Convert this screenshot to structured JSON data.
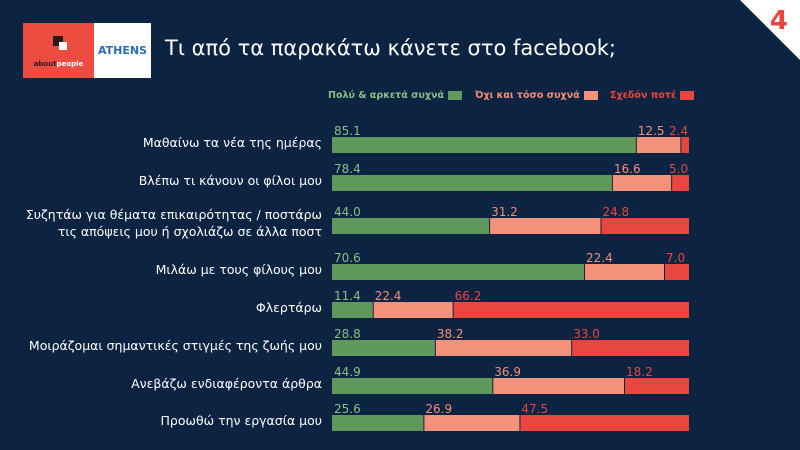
{
  "header": {
    "title": "Τι από τα παρακάτω κάνετε στο facebook;",
    "page_number": "4",
    "logo": {
      "left_text_dark": "about",
      "left_text_light": "people",
      "right_text": "ATHENS"
    }
  },
  "colors": {
    "background": "#0c2341",
    "green": "#5f9a5c",
    "salmon": "#f4917a",
    "red": "#e8463e"
  },
  "chart_data": {
    "type": "bar",
    "orientation": "horizontal",
    "stacked": true,
    "xlim": [
      0,
      100
    ],
    "legend_position": "top-right",
    "categories": [
      "Μαθαίνω τα νέα της ημέρας",
      "Βλέπω τι κάνουν οι φίλοι μου",
      "Συζητάω για θέματα επικαιρότητας / ποστάρω τις απόψεις μου ή σχολιάζω σε άλλα ποστ",
      "Μιλάω με τους φίλους μου",
      "Φλερτάρω",
      "Μοιράζομαι σημαντικές στιγμές της ζωής μου",
      "Ανεβάζω ενδιαφέροντα άρθρα",
      "Προωθώ την εργασία μου"
    ],
    "series": [
      {
        "name": "Πολύ & αρκετά συχνά",
        "color": "#5f9a5c",
        "label_color": "#8cbf85",
        "values": [
          85.1,
          78.4,
          44.0,
          70.6,
          11.4,
          28.8,
          44.9,
          25.6
        ]
      },
      {
        "name": "Όχι και τόσο συχνά",
        "color": "#f4917a",
        "label_color": "#f4917a",
        "values": [
          12.5,
          16.6,
          31.2,
          22.4,
          22.4,
          38.2,
          36.9,
          26.9
        ]
      },
      {
        "name": "Σχεδόν ποτέ",
        "color": "#e8463e",
        "label_color": "#e8463e",
        "values": [
          2.4,
          5.0,
          24.8,
          7.0,
          66.2,
          33.0,
          18.2,
          47.5
        ]
      }
    ]
  }
}
